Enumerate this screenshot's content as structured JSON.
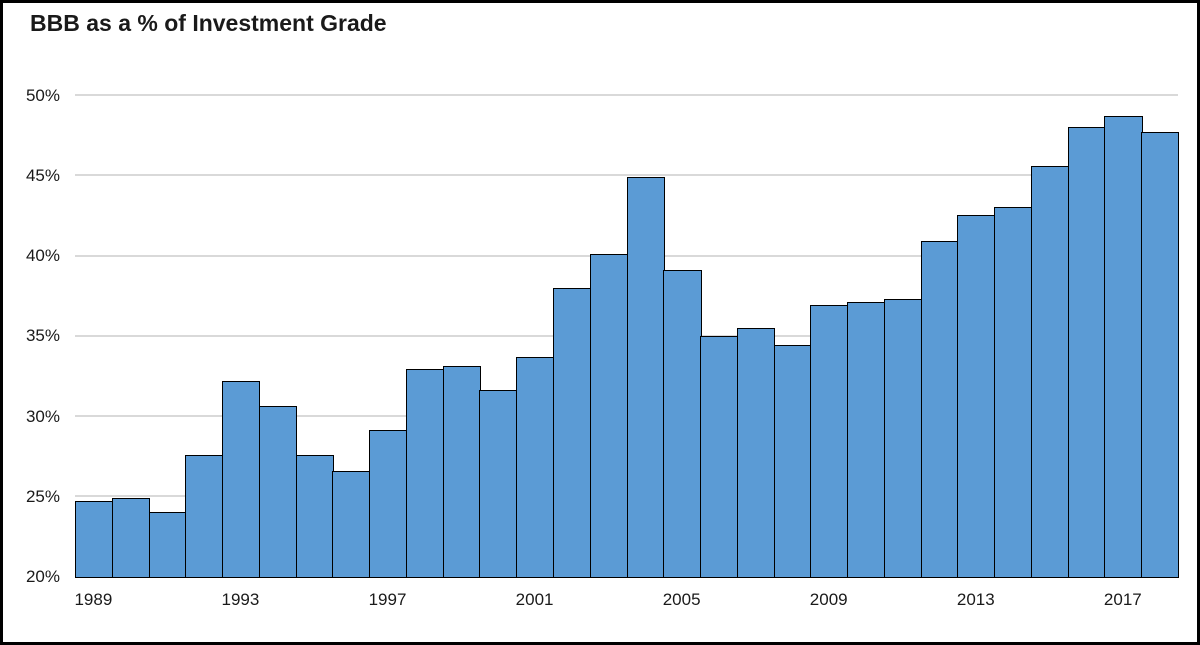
{
  "title": "BBB as a % of Investment Grade",
  "chart_data": {
    "type": "bar",
    "title": "BBB as a % of Investment Grade",
    "categories": [
      1989,
      1990,
      1991,
      1992,
      1993,
      1994,
      1995,
      1996,
      1997,
      1998,
      1999,
      2000,
      2001,
      2002,
      2003,
      2004,
      2005,
      2006,
      2007,
      2008,
      2009,
      2010,
      2011,
      2012,
      2013,
      2014,
      2015,
      2016,
      2017,
      2018
    ],
    "values": [
      24.7,
      24.9,
      24.0,
      27.6,
      32.2,
      30.6,
      27.6,
      26.6,
      29.1,
      32.9,
      33.1,
      31.6,
      33.7,
      38.0,
      40.1,
      44.9,
      39.1,
      35.0,
      35.5,
      34.4,
      36.9,
      37.1,
      37.3,
      40.9,
      42.5,
      43.0,
      45.6,
      48.0,
      48.7,
      47.7
    ],
    "xlabel": "",
    "ylabel": "",
    "ylim": [
      20,
      50
    ],
    "ytick_step": 5,
    "ytick_labels": [
      "20%",
      "25%",
      "30%",
      "35%",
      "40%",
      "45%",
      "50%"
    ],
    "xtick_labels": [
      "1989",
      "1993",
      "1997",
      "2001",
      "2005",
      "2009",
      "2013",
      "2017"
    ],
    "xtick_every": 4,
    "grid": true,
    "legend": "none",
    "colors": {
      "bar_fill": "#5b9bd5",
      "bar_border": "#000000",
      "gridline": "#d9d9d9",
      "text": "#1a1a1a",
      "frame": "#000000",
      "background": "#ffffff"
    }
  }
}
